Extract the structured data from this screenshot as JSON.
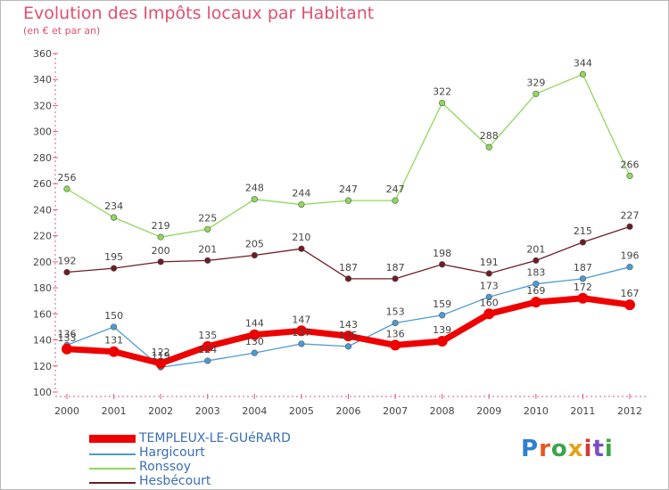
{
  "header": {
    "title": "Evolution des Impôts locaux par Habitant",
    "subtitle": "(en € et par an)"
  },
  "logo": {
    "text": "Proxiti",
    "letters": [
      "P",
      "r",
      "o",
      "x",
      "i",
      "t",
      "i"
    ],
    "colors": [
      "#2f7fd0",
      "#e8561f",
      "#3ea34a",
      "#e5a21a",
      "#d23b3b",
      "#7a4fc4",
      "#3ea34a"
    ]
  },
  "chart_data": {
    "type": "line",
    "title": "Evolution des Impôts locaux par Habitant",
    "subtitle": "(en € et par an)",
    "xlabel": "",
    "ylabel": "",
    "x": [
      "2000",
      "2001",
      "2002",
      "2003",
      "2004",
      "2005",
      "2006",
      "2007",
      "2008",
      "2009",
      "2010",
      "2011",
      "2012"
    ],
    "ylim": [
      100,
      360
    ],
    "yticks": [
      100,
      120,
      140,
      160,
      180,
      200,
      220,
      240,
      260,
      280,
      300,
      320,
      340,
      360
    ],
    "grid": false,
    "legend_position": "bottom-left",
    "series": [
      {
        "name": "TEMPLEUX-LE-GUéRARD",
        "color": "#ee0000",
        "width": "thick",
        "values": [
          133,
          131,
          122,
          135,
          144,
          147,
          143,
          136,
          139,
          160,
          169,
          172,
          167
        ],
        "labels": [
          "133",
          "131",
          "122",
          "135",
          "144",
          "147",
          "143",
          "136",
          "139",
          "160",
          "169",
          "172",
          "167"
        ]
      },
      {
        "name": "Hargicourt",
        "color": "#4d9bd3",
        "width": "thin",
        "values": [
          136,
          150,
          119,
          124,
          130,
          137,
          135,
          153,
          159,
          173,
          183,
          187,
          196
        ],
        "labels": [
          "136",
          "150",
          "119",
          "124",
          "130",
          "137",
          "135",
          "153",
          "159",
          "173",
          "183",
          "187",
          "196"
        ]
      },
      {
        "name": "Ronssoy",
        "color": "#8fd85c",
        "width": "thin",
        "values": [
          256,
          234,
          219,
          225,
          248,
          244,
          247,
          247,
          322,
          288,
          329,
          344,
          266
        ],
        "labels": [
          "256",
          "234",
          "219",
          "225",
          "248",
          "244",
          "247",
          "247",
          "322",
          "288",
          "329",
          "344",
          "266"
        ]
      },
      {
        "name": "Hesbécourt",
        "color": "#6e1c24",
        "width": "thin",
        "values": [
          192,
          195,
          200,
          201,
          205,
          210,
          187,
          187,
          198,
          191,
          201,
          215,
          227
        ],
        "labels": [
          "192",
          "195",
          "200",
          "201",
          "205",
          "210",
          "187",
          "187",
          "198",
          "191",
          "201",
          "215",
          "227"
        ]
      }
    ]
  }
}
